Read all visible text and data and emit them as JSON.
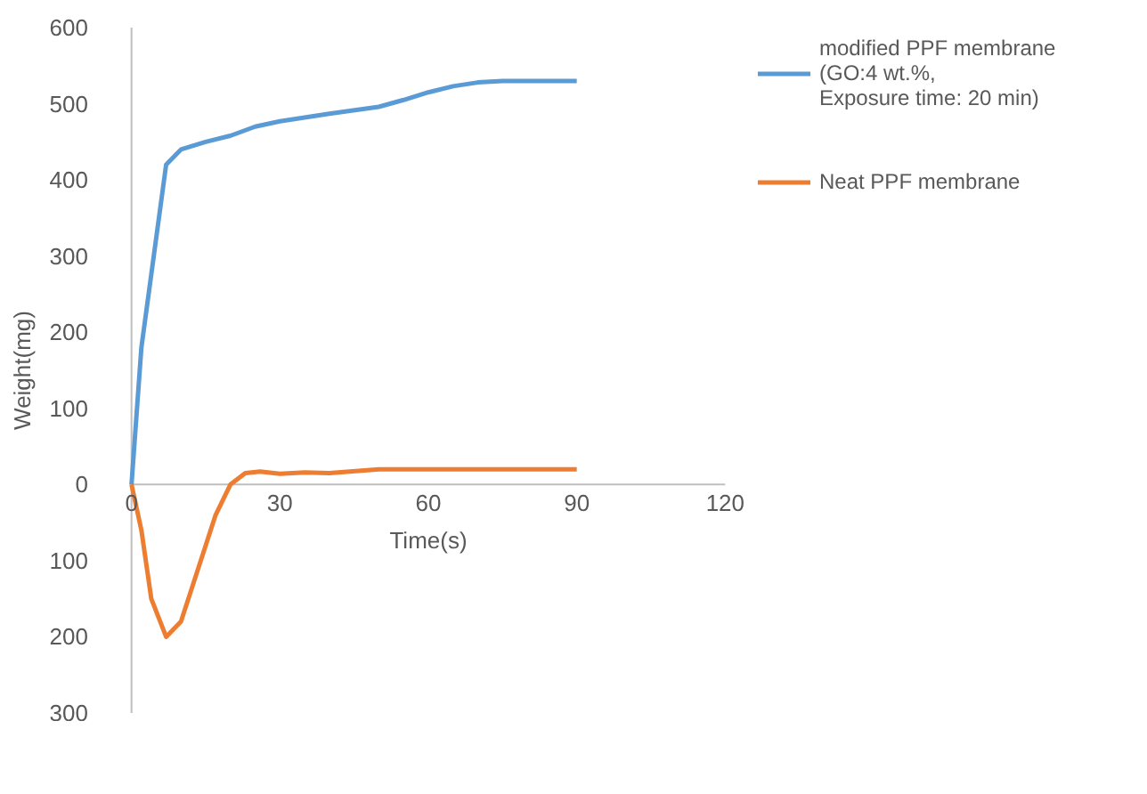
{
  "chart_data": {
    "type": "line",
    "xlabel": "Time(s)",
    "ylabel": "Weight(mg)",
    "xlim": [
      0,
      120
    ],
    "xticks": [
      0,
      30,
      60,
      90,
      120
    ],
    "ylim": [
      -300,
      600
    ],
    "yticks": [
      {
        "value": -300,
        "label": "300"
      },
      {
        "value": -200,
        "label": "200"
      },
      {
        "value": -100,
        "label": "100"
      },
      0,
      100,
      200,
      300,
      400,
      500,
      600
    ],
    "grid": false,
    "legend": "right",
    "marker": "none",
    "line_style": "solid",
    "series": [
      {
        "name": "modified PPF membrane\n(GO:4 wt.%,\nExposure time: 20 min)",
        "color": "#5b9bd5",
        "x": [
          0,
          2,
          4.5,
          7,
          10,
          15,
          20,
          25,
          30,
          40,
          50,
          55,
          60,
          65,
          70,
          75,
          90
        ],
        "values": [
          0,
          180,
          300,
          420,
          440,
          450,
          458,
          470,
          477,
          487,
          496,
          505,
          515,
          523,
          528,
          530,
          530
        ]
      },
      {
        "name": "Neat PPF membrane",
        "color": "#ed7d31",
        "x": [
          0,
          2,
          4,
          7,
          10,
          13,
          17,
          20,
          23,
          26,
          30,
          35,
          40,
          50,
          60,
          90
        ],
        "values": [
          0,
          -60,
          -150,
          -200,
          -180,
          -120,
          -40,
          0,
          15,
          17,
          14,
          16,
          15,
          20,
          20,
          20
        ]
      }
    ]
  }
}
